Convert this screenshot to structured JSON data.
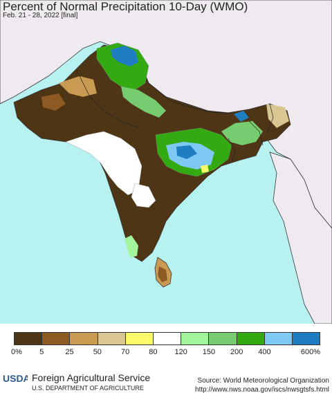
{
  "header": {
    "title": "Percent of Normal Precipitation 10-Day (WMO)",
    "subtitle": "Feb. 21 - 28, 2022 [final]"
  },
  "legend": {
    "colors": [
      "#4e3515",
      "#8e5a24",
      "#c99a52",
      "#d9c792",
      "#fafa6a",
      "#ffffff",
      "#a2f59a",
      "#78cc70",
      "#33aa11",
      "#7ec8f4",
      "#1f7ec1"
    ],
    "labels": [
      "0%",
      "5",
      "25",
      "50",
      "70",
      "80",
      "120",
      "150",
      "200",
      "400",
      "600%"
    ]
  },
  "colors": {
    "ocean": "#b8f2f0",
    "land_outside": "#efeaef",
    "border": "#222222"
  },
  "footer": {
    "logo_text": "USDA",
    "agency": "Foreign Agricultural Service",
    "department": "U.S. DEPARTMENT OF AGRICULTURE",
    "source": "Source: World Meteorological Organization",
    "url": "http://www.nws.noaa.gov/iscs/nwsgtsfs.html"
  }
}
